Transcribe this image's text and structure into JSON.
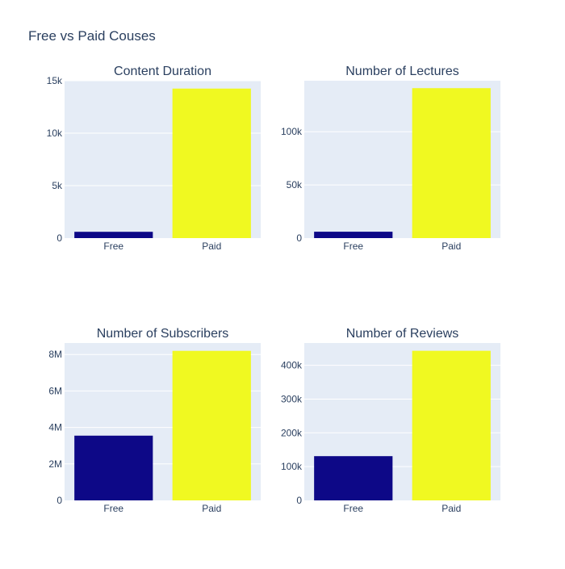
{
  "figure": {
    "title": "Free vs Paid Couses"
  },
  "chart_data": [
    {
      "type": "bar",
      "title": "Content Duration",
      "categories": [
        "Free",
        "Paid"
      ],
      "values": [
        600,
        14250
      ],
      "colors": [
        "#0d0887",
        "#f0f921"
      ],
      "ylim": [
        0,
        15000
      ],
      "yticks": [
        0,
        5000,
        10000,
        15000
      ],
      "ytick_labels": [
        "0",
        "5k",
        "10k",
        "15k"
      ],
      "xlabel": "",
      "ylabel": "",
      "grid": true,
      "legend": false
    },
    {
      "type": "bar",
      "title": "Number of Lectures",
      "categories": [
        "Free",
        "Paid"
      ],
      "values": [
        6000,
        141000
      ],
      "colors": [
        "#0d0887",
        "#f0f921"
      ],
      "ylim": [
        0,
        148000
      ],
      "yticks": [
        0,
        50000,
        100000
      ],
      "ytick_labels": [
        "0",
        "50k",
        "100k"
      ],
      "xlabel": "",
      "ylabel": "",
      "grid": true,
      "legend": false
    },
    {
      "type": "bar",
      "title": "Number of Subscribers",
      "categories": [
        "Free",
        "Paid"
      ],
      "values": [
        3550000,
        8200000
      ],
      "colors": [
        "#0d0887",
        "#f0f921"
      ],
      "ylim": [
        0,
        8630000
      ],
      "yticks": [
        0,
        2000000,
        4000000,
        6000000,
        8000000
      ],
      "ytick_labels": [
        "0",
        "2M",
        "4M",
        "6M",
        "8M"
      ],
      "xlabel": "",
      "ylabel": "",
      "grid": true,
      "legend": false
    },
    {
      "type": "bar",
      "title": "Number of Reviews",
      "categories": [
        "Free",
        "Paid"
      ],
      "values": [
        131000,
        443000
      ],
      "colors": [
        "#0d0887",
        "#f0f921"
      ],
      "ylim": [
        0,
        466000
      ],
      "yticks": [
        0,
        100000,
        200000,
        300000,
        400000
      ],
      "ytick_labels": [
        "0",
        "100k",
        "200k",
        "300k",
        "400k"
      ],
      "xlabel": "",
      "ylabel": "",
      "grid": true,
      "legend": false
    }
  ],
  "style": {
    "plot_background": "#e5ecf6",
    "gridline": "#ffffff",
    "text": "#2a3f5f",
    "free_color": "#0d0887",
    "paid_color": "#f0f921"
  }
}
